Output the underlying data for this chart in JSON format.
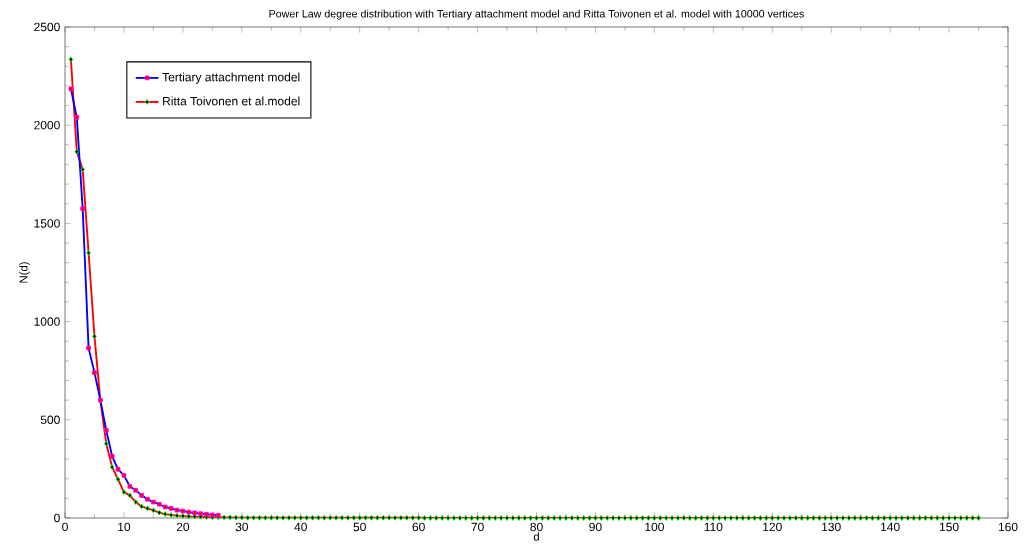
{
  "chart_data": {
    "type": "line",
    "title": "Power Law degree distribution with Tertiary attachment model and Ritta Toivonen et al. model with 10000 vertices",
    "xlabel": "d",
    "ylabel": "N(d)",
    "x": [
      1,
      2,
      3,
      4,
      5,
      6,
      7,
      8,
      9,
      10,
      11,
      12,
      13,
      14,
      15,
      16,
      17,
      18,
      19,
      20,
      21,
      22,
      23,
      24,
      25,
      26,
      27,
      28,
      29,
      30,
      31,
      32,
      33,
      34,
      35,
      36,
      37,
      38,
      39,
      40,
      41,
      42,
      43,
      44,
      45,
      46,
      47,
      48,
      49,
      50,
      51,
      52,
      53,
      54,
      55,
      56,
      57,
      58,
      59,
      60,
      61,
      62,
      63,
      64,
      65,
      66,
      67,
      68,
      69,
      70,
      71,
      72,
      73,
      74,
      75,
      76,
      77,
      78,
      79,
      80,
      81,
      82,
      83,
      84,
      85,
      86,
      87,
      88,
      89,
      90,
      91,
      92,
      93,
      94,
      95,
      96,
      97,
      98,
      99,
      100,
      101,
      102,
      103,
      104,
      105,
      106,
      107,
      108,
      109,
      110,
      111,
      112,
      113,
      114,
      115,
      116,
      117,
      118,
      119,
      120,
      121,
      122,
      123,
      124,
      125,
      126,
      127,
      128,
      129,
      130,
      131,
      132,
      133,
      134,
      135,
      136,
      137,
      138,
      139,
      140,
      141,
      142,
      143,
      144,
      145,
      146,
      147,
      148,
      149,
      150,
      151,
      152,
      153,
      154,
      155
    ],
    "series": [
      {
        "name": "Tertiary attachment model",
        "color": "#0000ff",
        "marker": "square",
        "values": [
          2185,
          2040,
          1575,
          865,
          740,
          600,
          446,
          314,
          248,
          217,
          161,
          141,
          115,
          95,
          81,
          70,
          56,
          49,
          40,
          35,
          30,
          26,
          22,
          19,
          16,
          14,
          null,
          null,
          null,
          null,
          null,
          null,
          null,
          null,
          null,
          null,
          null,
          null,
          null,
          null,
          null,
          null,
          null,
          null,
          null,
          null,
          null,
          null,
          null,
          null,
          null,
          null,
          null,
          null,
          null,
          null,
          null,
          null,
          null,
          null,
          null,
          null,
          null,
          null,
          null,
          null,
          null,
          null,
          null,
          null,
          null,
          null,
          null,
          null,
          null,
          null,
          null,
          null,
          null,
          null,
          null,
          null,
          null,
          null,
          null,
          null,
          null,
          null,
          null,
          null,
          null,
          null,
          null,
          null,
          null,
          null,
          null,
          null,
          null,
          null,
          null,
          null,
          null,
          null,
          null,
          null,
          null,
          null,
          null,
          null,
          null,
          null,
          null,
          null,
          null,
          null,
          null,
          null,
          null,
          null,
          null,
          null,
          null,
          null,
          null,
          null,
          null,
          null,
          null,
          null,
          null,
          null,
          null,
          null,
          null,
          null,
          null,
          null,
          null,
          null,
          null,
          null,
          null,
          null,
          null,
          null,
          null,
          null,
          null,
          null,
          null,
          null,
          null,
          null,
          null
        ]
      },
      {
        "name": "Ritta Toivonen et al.model",
        "color": "#ff0000",
        "marker": "diamond",
        "values": [
          2335,
          1865,
          1775,
          1350,
          925,
          598,
          378,
          259,
          197,
          132,
          115,
          81,
          59,
          49,
          39,
          27,
          20,
          15,
          12,
          10,
          8,
          7,
          6,
          5,
          4,
          4,
          3,
          3,
          2,
          2,
          1,
          1,
          1,
          1,
          1,
          1,
          1,
          1,
          1,
          1,
          1,
          1,
          1,
          1,
          1,
          1,
          1,
          1,
          1,
          1,
          1,
          1,
          1,
          1,
          1,
          1,
          1,
          1,
          1,
          1,
          0,
          0,
          0,
          0,
          0,
          0,
          0,
          0,
          0,
          0,
          0,
          0,
          0,
          0,
          0,
          0,
          0,
          0,
          0,
          0,
          0,
          0,
          0,
          0,
          0,
          0,
          0,
          0,
          0,
          0,
          0,
          0,
          0,
          0,
          0,
          0,
          0,
          0,
          0,
          0,
          0,
          0,
          0,
          0,
          0,
          0,
          0,
          0,
          0,
          0,
          0,
          0,
          0,
          0,
          0,
          0,
          0,
          0,
          0,
          0,
          0,
          0,
          0,
          0,
          0,
          0,
          0,
          0,
          0,
          0,
          0,
          0,
          0,
          0,
          0,
          0,
          0,
          0,
          0,
          0,
          0,
          0,
          0,
          0,
          0,
          0,
          0,
          0,
          0,
          0,
          0,
          0,
          0,
          0,
          0
        ]
      }
    ],
    "xlim": [
      0,
      160
    ],
    "xticks": [
      0,
      10,
      20,
      30,
      40,
      50,
      60,
      70,
      80,
      90,
      100,
      110,
      120,
      130,
      140,
      150,
      160
    ],
    "ylim": [
      0,
      2500
    ],
    "yticks": [
      0,
      500,
      1000,
      1500,
      2000,
      2500
    ],
    "legend": "top left",
    "grid": false,
    "line_style": "solid"
  }
}
